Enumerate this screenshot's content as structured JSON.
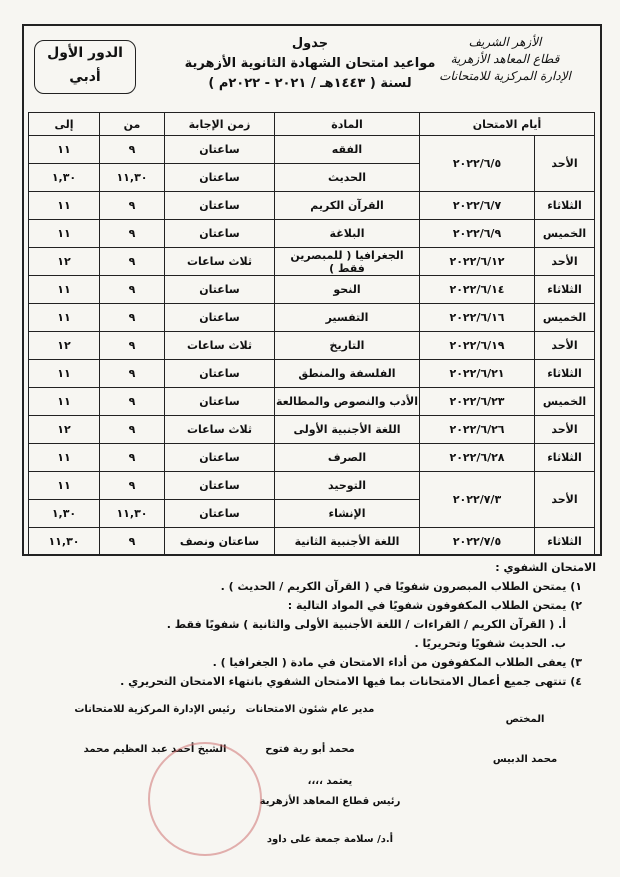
{
  "header": {
    "institution": [
      "الأزهر الشريف",
      "قطاع المعاهد الأزهرية",
      "الإدارة المركزية للامتحانات"
    ],
    "title": [
      "جدول",
      "مواعيد امتحان الشهادة الثانوية الأزهرية",
      "لسنة ( ١٤٤٣هـ / ٢٠٢١ - ٢٠٢٢م )"
    ],
    "round": [
      "الدور الأول",
      "أدبي"
    ]
  },
  "table": {
    "columns": [
      "أيام الامتحان",
      "المادة",
      "زمن الإجابة",
      "من",
      "إلى"
    ],
    "rows": [
      {
        "day": "الأحد",
        "date": "٢٠٢٢/٦/٥",
        "subjects": [
          {
            "subject": "الفقه",
            "duration": "ساعتان",
            "from": "٩",
            "to": "١١"
          },
          {
            "subject": "الحديث",
            "duration": "ساعتان",
            "from": "١١,٣٠",
            "to": "١,٣٠"
          }
        ]
      },
      {
        "day": "الثلاثاء",
        "date": "٢٠٢٢/٦/٧",
        "subjects": [
          {
            "subject": "القرآن الكريم",
            "duration": "ساعتان",
            "from": "٩",
            "to": "١١"
          }
        ]
      },
      {
        "day": "الخميس",
        "date": "٢٠٢٢/٦/٩",
        "subjects": [
          {
            "subject": "البلاغة",
            "duration": "ساعتان",
            "from": "٩",
            "to": "١١"
          }
        ]
      },
      {
        "day": "الأحد",
        "date": "٢٠٢٢/٦/١٢",
        "subjects": [
          {
            "subject": "الجغرافيا ( للمبصرين فقط )",
            "duration": "ثلاث ساعات",
            "from": "٩",
            "to": "١٢"
          }
        ]
      },
      {
        "day": "الثلاثاء",
        "date": "٢٠٢٢/٦/١٤",
        "subjects": [
          {
            "subject": "النحو",
            "duration": "ساعتان",
            "from": "٩",
            "to": "١١"
          }
        ]
      },
      {
        "day": "الخميس",
        "date": "٢٠٢٢/٦/١٦",
        "subjects": [
          {
            "subject": "التفسير",
            "duration": "ساعتان",
            "from": "٩",
            "to": "١١"
          }
        ]
      },
      {
        "day": "الأحد",
        "date": "٢٠٢٢/٦/١٩",
        "subjects": [
          {
            "subject": "التاريخ",
            "duration": "ثلاث ساعات",
            "from": "٩",
            "to": "١٢"
          }
        ]
      },
      {
        "day": "الثلاثاء",
        "date": "٢٠٢٢/٦/٢١",
        "subjects": [
          {
            "subject": "الفلسفة والمنطق",
            "duration": "ساعتان",
            "from": "٩",
            "to": "١١"
          }
        ]
      },
      {
        "day": "الخميس",
        "date": "٢٠٢٢/٦/٢٣",
        "subjects": [
          {
            "subject": "الأدب والنصوص والمطالعة",
            "duration": "ساعتان",
            "from": "٩",
            "to": "١١"
          }
        ]
      },
      {
        "day": "الأحد",
        "date": "٢٠٢٢/٦/٢٦",
        "subjects": [
          {
            "subject": "اللغة الأجنبية الأولى",
            "duration": "ثلاث ساعات",
            "from": "٩",
            "to": "١٢"
          }
        ]
      },
      {
        "day": "الثلاثاء",
        "date": "٢٠٢٢/٦/٢٨",
        "subjects": [
          {
            "subject": "الصرف",
            "duration": "ساعتان",
            "from": "٩",
            "to": "١١"
          }
        ]
      },
      {
        "day": "الأحد",
        "date": "٢٠٢٢/٧/٣",
        "subjects": [
          {
            "subject": "التوحيد",
            "duration": "ساعتان",
            "from": "٩",
            "to": "١١"
          },
          {
            "subject": "الإنشاء",
            "duration": "ساعتان",
            "from": "١١,٣٠",
            "to": "١,٣٠"
          }
        ]
      },
      {
        "day": "الثلاثاء",
        "date": "٢٠٢٢/٧/٥",
        "subjects": [
          {
            "subject": "اللغة الأجنبية الثانية",
            "duration": "ساعتان ونصف",
            "from": "٩",
            "to": "١١,٣٠"
          }
        ]
      }
    ]
  },
  "notes": {
    "heading": "الامتحان الشفوي :",
    "items": [
      "١) يمتحن الطلاب المبصرون شفويًا في ( القرآن الكريم / الحديث ) .",
      "٢) يمتحن الطلاب المكفوفون شفويًا في المواد التالية :",
      "أ. ( القرآن الكريم / القراءات / اللغة الأجنبية الأولى والثانية ) شفويًا فقط .",
      "ب. الحديث شفويًا وتحريريًا .",
      "٣) يعفى الطلاب المكفوفون من أداء الامتحان في مادة ( الجغرافيا ) .",
      "٤) تنتهى جميع أعمال الامتحانات بما فيها الامتحان الشفوي بانتهاء الامتحان التحريري ."
    ]
  },
  "signatures": [
    {
      "role": "المختص",
      "name": "محمد الدبيس"
    },
    {
      "role": "مدير عام شئون الامتحانات",
      "name": "محمد أبو رية فتوح"
    },
    {
      "role": "رئيس الإدارة المركزية للامتحانات",
      "name": "الشيخ أحمد عبد العظيم محمد"
    }
  ],
  "approval": {
    "lead": "يعتمد ،،،،",
    "role": "رئيس قطاع المعاهد الأزهرية",
    "name": "أ.د/ سلامة جمعة على داود"
  }
}
